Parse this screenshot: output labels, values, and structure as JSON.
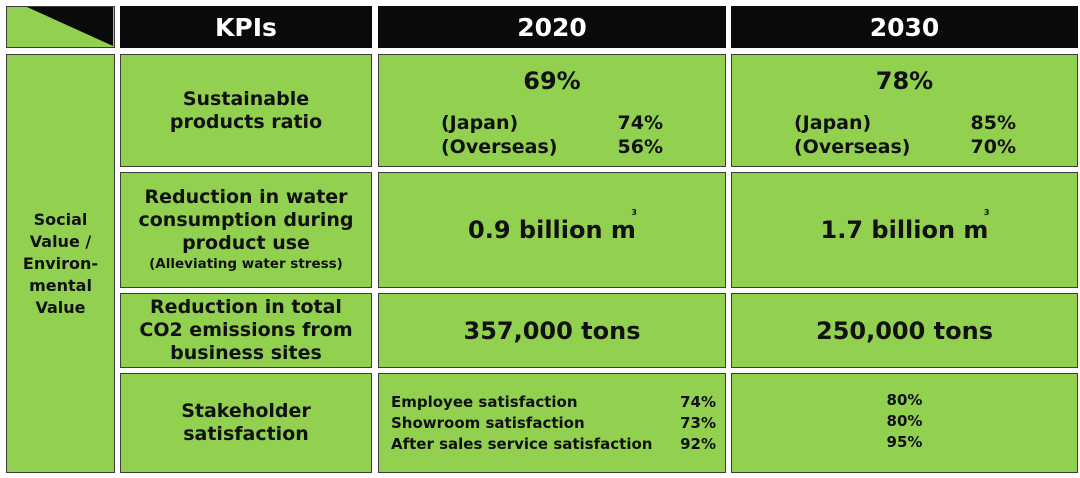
{
  "header": {
    "kpis": "KPIs",
    "year_2020": "2020",
    "year_2030": "2030"
  },
  "category": {
    "lines": [
      "Social",
      "Value /",
      "Environ-",
      "mental",
      "Value"
    ]
  },
  "rows": {
    "sustainable": {
      "label_lines": [
        "Sustainable",
        "products ratio"
      ],
      "v2020": {
        "total": "69%",
        "japan_label": "(Japan)",
        "japan": "74%",
        "overseas_label": "(Overseas)",
        "overseas": "56%"
      },
      "v2030": {
        "total": "78%",
        "japan_label": "(Japan)",
        "japan": "85%",
        "overseas_label": "(Overseas)",
        "overseas": "70%"
      }
    },
    "water": {
      "label_lines": [
        "Reduction in water",
        "consumption during",
        "product use"
      ],
      "label_sub": "(Alleviating water stress)",
      "v2020": "0.9 billion m",
      "v2030": "1.7 billion m",
      "unit_sup": "3"
    },
    "co2": {
      "label_lines": [
        "Reduction in total",
        "CO2 emissions from",
        "business sites"
      ],
      "v2020": "357,000 tons",
      "v2030": "250,000 tons"
    },
    "stakeholder": {
      "label_lines": [
        "Stakeholder",
        "satisfaction"
      ],
      "items_2020": [
        {
          "label": "Employee satisfaction",
          "value": "74%"
        },
        {
          "label": "Showroom satisfaction",
          "value": "73%"
        },
        {
          "label": "After sales service satisfaction",
          "value": "92%"
        }
      ],
      "values_2030": [
        "80%",
        "80%",
        "95%"
      ]
    }
  },
  "colors": {
    "green": "#92d050",
    "black": "#0a0a0a",
    "border": "#3c3c3c"
  }
}
